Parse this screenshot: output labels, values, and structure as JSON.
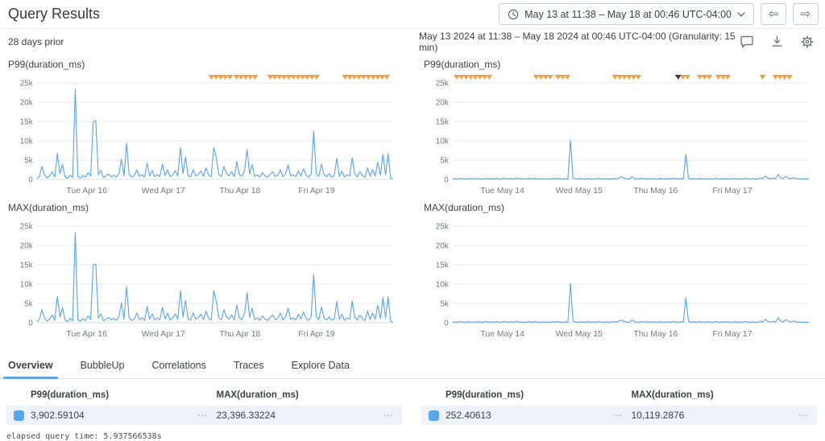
{
  "header": {
    "title": "Query Results",
    "time_range_button": "May 13 at 11:38 – May 18 at 00:46 UTC-04:00"
  },
  "subheader": {
    "relative_label": "28 days prior",
    "range_text": "May 13 2024 at 11:38 – May 18 2024 at 00:46 UTC-04:00 (Granularity: 15 min)"
  },
  "icons": {
    "prev_arrow": "⇦",
    "next_arrow": "⇨",
    "row_menu": "⋯"
  },
  "colors": {
    "line_blue": "#58a2e6",
    "grid_line": "#e6e9ec",
    "axis_text": "#73787d",
    "marker_orange": "#f5a142",
    "marker_dark": "#3a4149",
    "row_bg": "#edf2f8",
    "swatch_blue": "#59a7ea",
    "tab_accent": "#5ba4e5"
  },
  "tabs": {
    "items": [
      "Overview",
      "BubbleUp",
      "Correlations",
      "Traces",
      "Explore Data"
    ],
    "active": "Overview"
  },
  "chart_data": [
    {
      "type": "line",
      "title": "P99(duration_ms)",
      "y_ticks": [
        "0",
        "5k",
        "10k",
        "15k",
        "20k",
        "25k"
      ],
      "ylim": [
        0,
        25000
      ],
      "x_ticks": [
        "Tue Apr 16",
        "Wed Apr 17",
        "Thu Apr 18",
        "Fri Apr 19"
      ],
      "x_tick_pos": [
        0.14,
        0.355,
        0.57,
        0.785
      ],
      "grid": true,
      "markers": {
        "positions": [
          0.49,
          0.503,
          0.516,
          0.529,
          0.542,
          0.56,
          0.573,
          0.586,
          0.599,
          0.612,
          0.655,
          0.668,
          0.681,
          0.694,
          0.707,
          0.72,
          0.733,
          0.746,
          0.759,
          0.772,
          0.785,
          0.865,
          0.878,
          0.891,
          0.904,
          0.917,
          0.93,
          0.943,
          0.956,
          0.969,
          0.982
        ],
        "dark_positions": []
      },
      "values": [
        300,
        800,
        3400,
        1200,
        400,
        900,
        2000,
        600,
        6800,
        1500,
        3900,
        700,
        300,
        1100,
        500,
        23400,
        800,
        400,
        1000,
        600,
        1800,
        900,
        15000,
        15200,
        1200,
        2300,
        500,
        900,
        1400,
        700,
        1100,
        600,
        1500,
        5200,
        900,
        9400,
        1300,
        600,
        1000,
        2500,
        800,
        1200,
        600,
        4200,
        900,
        2300,
        700,
        1200,
        800,
        4000,
        1000,
        2500,
        700,
        1200,
        2300,
        900,
        8300,
        1500,
        5800,
        1000,
        700,
        2500,
        900,
        1300,
        2200,
        800,
        3000,
        1100,
        700,
        8300,
        5600,
        1200,
        800,
        3400,
        1500,
        900,
        2000,
        700,
        4600,
        1200,
        900,
        2200,
        7800,
        1400,
        3800,
        800,
        1200,
        600,
        1800,
        900,
        600,
        1300,
        2000,
        800,
        1100,
        2500,
        700,
        1500,
        3800,
        900,
        1200,
        700,
        2200,
        900,
        2800,
        1100,
        600,
        1400,
        12500,
        1500,
        800,
        4000,
        1200,
        700,
        1500,
        600,
        1000,
        5500,
        800,
        2200,
        600,
        1200,
        900,
        5600,
        1400,
        700,
        2000,
        1000,
        600,
        3000,
        800,
        2500,
        900,
        4500,
        1100,
        6500,
        1200,
        6700,
        300,
        100
      ]
    },
    {
      "type": "line",
      "title": "P99(duration_ms)",
      "y_ticks": [
        "0",
        "5k",
        "10k",
        "15k",
        "20k",
        "25k"
      ],
      "ylim": [
        0,
        25000
      ],
      "x_ticks": [
        "Tue May 14",
        "Wed May 15",
        "Thu May 16",
        "Fri May 17"
      ],
      "x_tick_pos": [
        0.14,
        0.355,
        0.57,
        0.785
      ],
      "grid": true,
      "markers": {
        "positions": [
          0.012,
          0.025,
          0.038,
          0.051,
          0.064,
          0.077,
          0.09,
          0.103,
          0.235,
          0.248,
          0.261,
          0.274,
          0.296,
          0.309,
          0.322,
          0.456,
          0.469,
          0.482,
          0.495,
          0.508,
          0.521,
          0.646,
          0.659,
          0.694,
          0.707,
          0.72,
          0.746,
          0.759,
          0.772,
          0.87,
          0.906,
          0.919,
          0.932,
          0.945
        ],
        "dark_positions": [
          0.633
        ]
      },
      "values": [
        150,
        220,
        120,
        300,
        180,
        130,
        250,
        160,
        200,
        140,
        260,
        170,
        120,
        310,
        150,
        230,
        130,
        280,
        160,
        120,
        350,
        180,
        140,
        240,
        120,
        400,
        160,
        220,
        130,
        180,
        250,
        140,
        300,
        170,
        120,
        260,
        150,
        200,
        130,
        240,
        160,
        300,
        180,
        130,
        220,
        150,
        10100,
        400,
        170,
        130,
        250,
        160,
        120,
        280,
        150,
        200,
        130,
        320,
        170,
        140,
        230,
        120,
        180,
        260,
        140,
        500,
        650,
        300,
        160,
        130,
        700,
        250,
        140,
        180,
        300,
        150,
        220,
        130,
        260,
        160,
        140,
        280,
        170,
        130,
        240,
        150,
        320,
        180,
        140,
        250,
        160,
        6500,
        350,
        150,
        250,
        130,
        280,
        160,
        200,
        140,
        240,
        130,
        170,
        300,
        150,
        220,
        140,
        260,
        160,
        130,
        280,
        150,
        200,
        130,
        310,
        170,
        140,
        230,
        150,
        120,
        400,
        250,
        900,
        300,
        180,
        350,
        200,
        1300,
        400,
        250,
        800,
        350,
        180,
        450,
        250,
        150,
        200,
        130,
        160,
        120
      ]
    },
    {
      "type": "line",
      "title": "MAX(duration_ms)",
      "y_ticks": [
        "0",
        "5k",
        "10k",
        "15k",
        "20k",
        "25k"
      ],
      "ylim": [
        0,
        25000
      ],
      "x_ticks": [
        "Tue Apr 16",
        "Wed Apr 17",
        "Thu Apr 18",
        "Fri Apr 19"
      ],
      "x_tick_pos": [
        0.14,
        0.355,
        0.57,
        0.785
      ],
      "grid": true,
      "markers": {
        "positions": [],
        "dark_positions": []
      },
      "values": [
        300,
        800,
        3400,
        1200,
        400,
        900,
        2000,
        600,
        6800,
        1500,
        3900,
        700,
        300,
        1100,
        500,
        23400,
        800,
        400,
        1000,
        600,
        1800,
        900,
        15000,
        15200,
        1200,
        2300,
        500,
        900,
        1400,
        700,
        1100,
        600,
        1500,
        5200,
        900,
        9400,
        1300,
        600,
        1000,
        2500,
        800,
        1200,
        600,
        4200,
        900,
        2300,
        700,
        1200,
        800,
        4000,
        1000,
        2500,
        700,
        1200,
        2300,
        900,
        8300,
        1500,
        5800,
        1000,
        700,
        2500,
        900,
        1300,
        2200,
        800,
        3000,
        1100,
        700,
        8300,
        5600,
        1200,
        800,
        3400,
        1500,
        900,
        2000,
        700,
        4600,
        1200,
        900,
        2200,
        7800,
        1400,
        3800,
        800,
        1200,
        600,
        1800,
        900,
        600,
        1300,
        2000,
        800,
        1100,
        2500,
        700,
        1500,
        3800,
        900,
        1200,
        700,
        2200,
        900,
        2800,
        1100,
        600,
        1400,
        12500,
        1500,
        800,
        4000,
        1200,
        700,
        1500,
        600,
        1000,
        5500,
        800,
        2200,
        600,
        1200,
        900,
        5600,
        1400,
        700,
        2000,
        1000,
        600,
        3000,
        800,
        2500,
        900,
        4500,
        1100,
        6500,
        1200,
        6700,
        300,
        100
      ]
    },
    {
      "type": "line",
      "title": "MAX(duration_ms)",
      "y_ticks": [
        "0",
        "5k",
        "10k",
        "15k",
        "20k",
        "25k"
      ],
      "ylim": [
        0,
        25000
      ],
      "x_ticks": [
        "Tue May 14",
        "Wed May 15",
        "Thu May 16",
        "Fri May 17"
      ],
      "x_tick_pos": [
        0.14,
        0.355,
        0.57,
        0.785
      ],
      "grid": true,
      "markers": {
        "positions": [],
        "dark_positions": []
      },
      "values": [
        150,
        220,
        120,
        300,
        180,
        130,
        250,
        160,
        200,
        140,
        260,
        170,
        120,
        310,
        150,
        230,
        130,
        280,
        160,
        120,
        350,
        180,
        140,
        240,
        120,
        400,
        160,
        220,
        130,
        180,
        250,
        140,
        300,
        170,
        120,
        260,
        150,
        200,
        130,
        240,
        160,
        300,
        180,
        130,
        220,
        150,
        10100,
        400,
        170,
        130,
        250,
        160,
        120,
        280,
        150,
        200,
        130,
        320,
        170,
        140,
        230,
        120,
        180,
        260,
        140,
        500,
        650,
        300,
        160,
        130,
        700,
        250,
        140,
        180,
        300,
        150,
        220,
        130,
        260,
        160,
        140,
        280,
        170,
        130,
        240,
        150,
        320,
        180,
        140,
        250,
        160,
        6500,
        350,
        150,
        250,
        130,
        280,
        160,
        200,
        140,
        240,
        130,
        170,
        300,
        150,
        220,
        140,
        260,
        160,
        130,
        280,
        150,
        200,
        130,
        310,
        170,
        140,
        230,
        150,
        120,
        400,
        250,
        900,
        300,
        180,
        350,
        200,
        1300,
        400,
        250,
        800,
        350,
        180,
        450,
        250,
        150,
        200,
        130,
        160,
        120
      ]
    }
  ],
  "summary": [
    {
      "col1_header": "P99(duration_ms)",
      "col2_header": "MAX(duration_ms)",
      "swatch_color": "#59a7ea",
      "col1_value": "3,902.59104",
      "col2_value": "23,396.33224"
    },
    {
      "col1_header": "P99(duration_ms)",
      "col2_header": "MAX(duration_ms)",
      "swatch_color": "#59a7ea",
      "col1_value": "252.40613",
      "col2_value": "10,119.2876"
    }
  ],
  "footer": {
    "elapsed": "elapsed query time: 5.937566538s"
  }
}
